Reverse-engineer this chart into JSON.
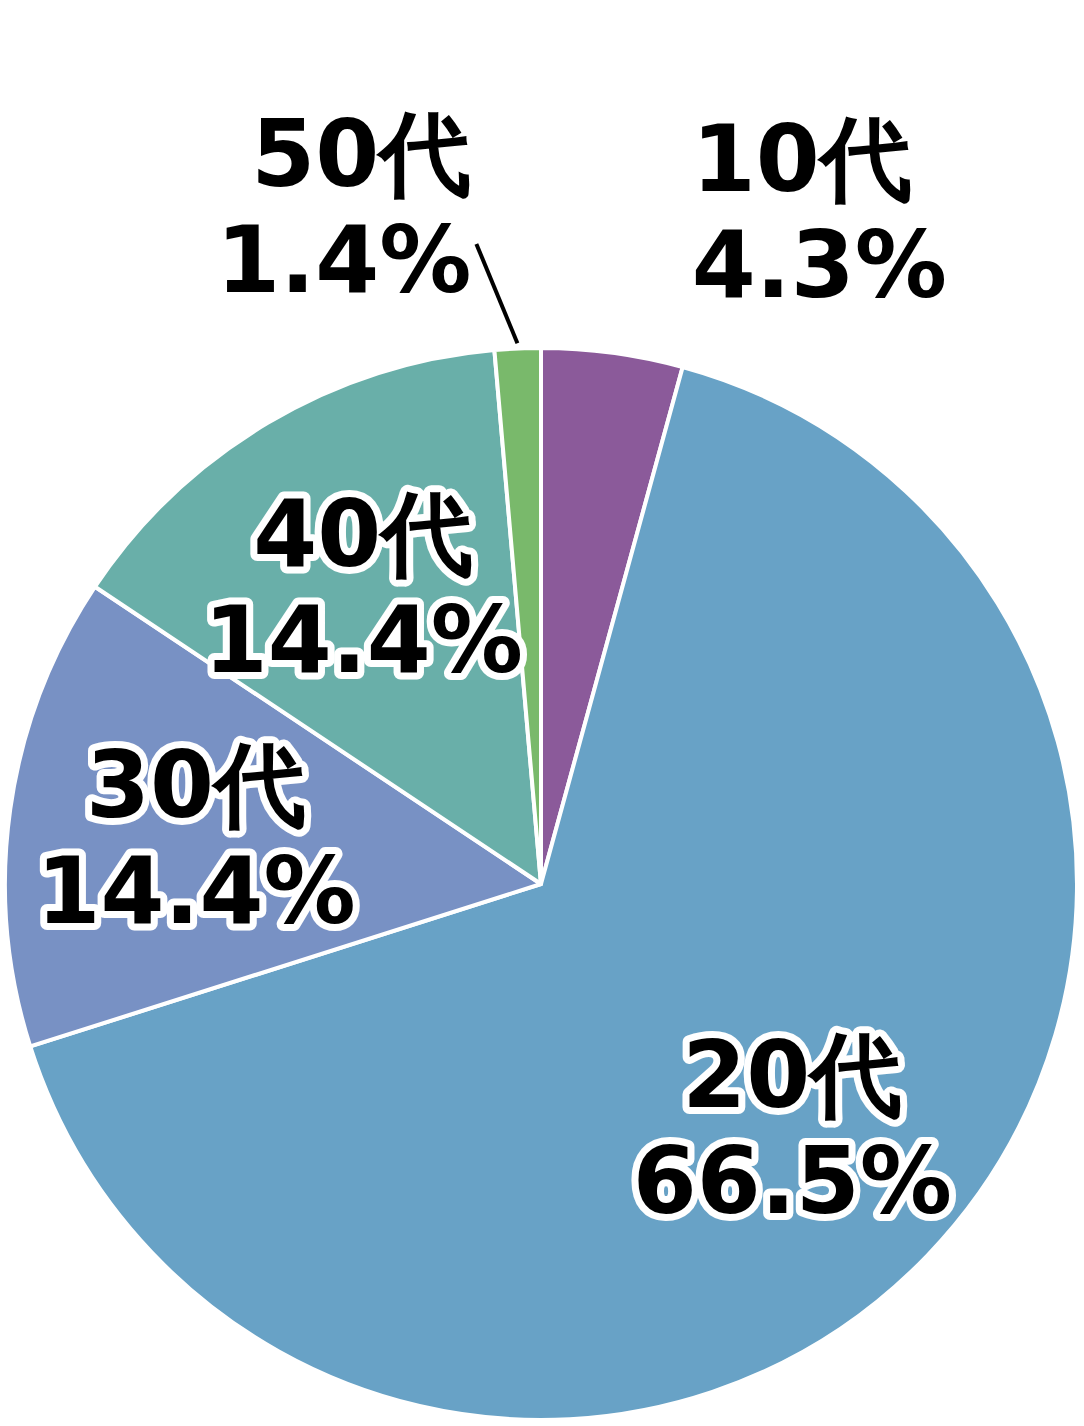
{
  "chart_data": {
    "type": "pie",
    "categories": [
      "10代",
      "20代",
      "30代",
      "40代",
      "50代"
    ],
    "values": [
      4.3,
      66.5,
      14.4,
      14.4,
      1.4
    ],
    "colors": [
      "#8b5a9a",
      "#68a2c6",
      "#7891c4",
      "#69afa9",
      "#79b96b"
    ],
    "value_labels": [
      "4.3%",
      "66.5%",
      "14.4%",
      "14.4%",
      "1.4%"
    ]
  }
}
